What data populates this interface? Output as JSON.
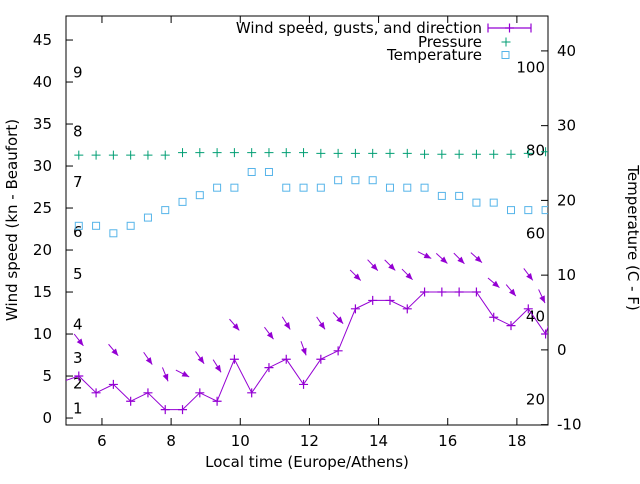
{
  "chart_data": {
    "type": "line",
    "title": "",
    "xlabel": "Local time (Europe/Athens)",
    "ylabel_left": "Wind speed (kn - Beaufort)",
    "ylabel_right": "Temperature (C - F)",
    "grid": false,
    "legend_position": "top-right-inside",
    "x_axis": {
      "range": [
        4.96,
        18.9
      ],
      "ticks": [
        6,
        8,
        10,
        12,
        14,
        16,
        18
      ]
    },
    "y_left_axis": {
      "units": "kn",
      "range": [
        -0.83,
        47.86
      ],
      "ticks": [
        0,
        5,
        10,
        15,
        20,
        25,
        30,
        35,
        40,
        45
      ],
      "beaufort_labels": [
        {
          "label": "1",
          "kn": 1
        },
        {
          "label": "2",
          "kn": 4
        },
        {
          "label": "3",
          "kn": 7
        },
        {
          "label": "4",
          "kn": 11
        },
        {
          "label": "5",
          "kn": 17
        },
        {
          "label": "6",
          "kn": 22
        },
        {
          "label": "7",
          "kn": 28
        },
        {
          "label": "8",
          "kn": 34
        },
        {
          "label": "9",
          "kn": 41
        }
      ]
    },
    "y_right_axis": {
      "units": "C",
      "range": [
        -10.05,
        44.67
      ],
      "ticks": [
        -10,
        0,
        10,
        20,
        30,
        40
      ],
      "fahrenheit_labels": [
        20,
        40,
        60,
        80,
        100
      ]
    },
    "times": [
      5.33,
      5.83,
      6.33,
      6.83,
      7.33,
      7.83,
      8.33,
      8.83,
      9.33,
      9.83,
      10.33,
      10.83,
      11.33,
      11.83,
      12.33,
      12.83,
      13.33,
      13.83,
      14.33,
      14.83,
      15.33,
      15.83,
      16.33,
      16.83,
      17.33,
      17.83,
      18.33,
      18.83
    ],
    "series": {
      "wind": {
        "name": "Wind speed, gusts, and direction",
        "color": "#9400d3",
        "marker": "plus",
        "values_kn": [
          5,
          3,
          4,
          2,
          3,
          1,
          1,
          3,
          2,
          7,
          3,
          6,
          7,
          4,
          7,
          8,
          13,
          14,
          14,
          13,
          15,
          15,
          15,
          15,
          12,
          11,
          13,
          10
        ],
        "clipped_lead_point": {
          "time": 4.83,
          "value_kn": 4.3
        },
        "clipped_trail_point": {
          "time": 19.33,
          "value_kn": 16
        },
        "gust_arrows": [
          {
            "time": 5.33,
            "gust_kn": 9.3,
            "angle_deg": 52
          },
          {
            "time": 6.33,
            "gust_kn": 8.1,
            "angle_deg": 50
          },
          {
            "time": 7.33,
            "gust_kn": 7.1,
            "angle_deg": 55
          },
          {
            "time": 7.83,
            "gust_kn": 5.2,
            "angle_deg": 68
          },
          {
            "time": 8.33,
            "gust_kn": 5.3,
            "angle_deg": 27
          },
          {
            "time": 8.83,
            "gust_kn": 7.2,
            "angle_deg": 55
          },
          {
            "time": 9.33,
            "gust_kn": 6.2,
            "angle_deg": 58
          },
          {
            "time": 9.83,
            "gust_kn": 11.1,
            "angle_deg": 49
          },
          {
            "time": 10.83,
            "gust_kn": 10.1,
            "angle_deg": 53
          },
          {
            "time": 11.33,
            "gust_kn": 11.3,
            "angle_deg": 58
          },
          {
            "time": 11.83,
            "gust_kn": 8.3,
            "angle_deg": 70
          },
          {
            "time": 12.33,
            "gust_kn": 11.3,
            "angle_deg": 56
          },
          {
            "time": 12.83,
            "gust_kn": 11.9,
            "angle_deg": 48
          },
          {
            "time": 13.33,
            "gust_kn": 17.0,
            "angle_deg": 45
          },
          {
            "time": 13.83,
            "gust_kn": 18.2,
            "angle_deg": 47
          },
          {
            "time": 14.33,
            "gust_kn": 18.2,
            "angle_deg": 45
          },
          {
            "time": 14.83,
            "gust_kn": 17.1,
            "angle_deg": 45
          },
          {
            "time": 15.33,
            "gust_kn": 19.4,
            "angle_deg": 27
          },
          {
            "time": 15.83,
            "gust_kn": 19.0,
            "angle_deg": 42
          },
          {
            "time": 16.33,
            "gust_kn": 19.0,
            "angle_deg": 45
          },
          {
            "time": 16.83,
            "gust_kn": 19.1,
            "angle_deg": 42
          },
          {
            "time": 17.33,
            "gust_kn": 16.1,
            "angle_deg": 40
          },
          {
            "time": 17.83,
            "gust_kn": 15.2,
            "angle_deg": 50
          },
          {
            "time": 18.33,
            "gust_kn": 17.1,
            "angle_deg": 53
          },
          {
            "time": 18.72,
            "gust_kn": 14.5,
            "angle_deg": 65
          }
        ]
      },
      "pressure": {
        "name": "Pressure",
        "color": "#009e73",
        "marker": "plus",
        "values_plot_kn_scale": [
          31.3,
          31.3,
          31.3,
          31.3,
          31.3,
          31.3,
          31.6,
          31.6,
          31.6,
          31.6,
          31.6,
          31.6,
          31.6,
          31.6,
          31.5,
          31.5,
          31.5,
          31.5,
          31.5,
          31.5,
          31.4,
          31.4,
          31.4,
          31.4,
          31.4,
          31.4,
          31.5,
          31.7
        ]
      },
      "temperature": {
        "name": "Temperature",
        "color": "#56b4e9",
        "marker": "open-square",
        "values_c": [
          16.6,
          16.6,
          15.6,
          16.6,
          17.7,
          18.7,
          19.8,
          20.7,
          21.7,
          21.7,
          23.8,
          23.8,
          21.7,
          21.7,
          21.7,
          22.7,
          22.7,
          22.7,
          21.7,
          21.7,
          21.7,
          20.6,
          20.6,
          19.7,
          19.7,
          18.7,
          18.7,
          18.7
        ]
      }
    }
  }
}
